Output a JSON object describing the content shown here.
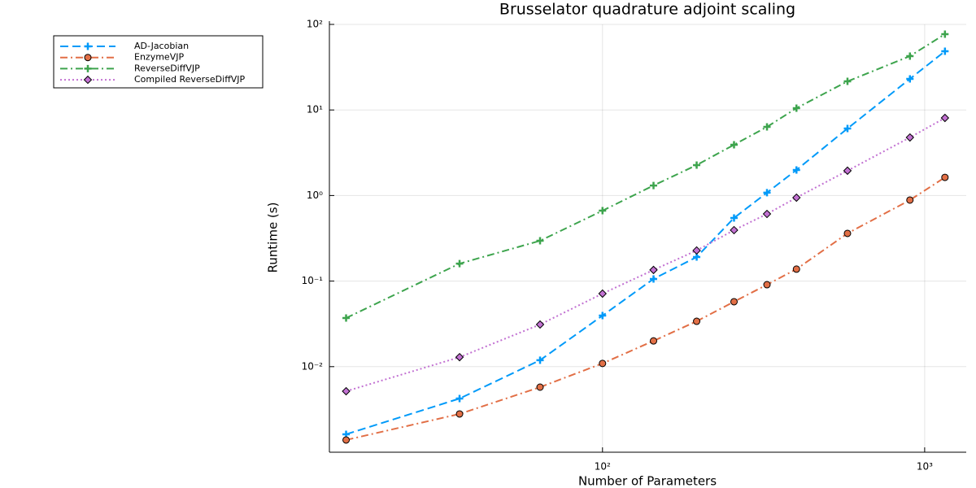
{
  "chart_data": {
    "type": "line",
    "title": "Brusselator quadrature adjoint scaling",
    "x_label": "Number of Parameters",
    "y_label": "Runtime (s)",
    "x": [
      16,
      36,
      64,
      100,
      144,
      196,
      256,
      324,
      400,
      576,
      900,
      1156
    ],
    "series": [
      {
        "name": "AD-Jacobian",
        "color": "#009af9",
        "linestyle": "dash",
        "marker": "cross",
        "values": [
          0.00162,
          0.00424,
          0.0119,
          0.0395,
          0.106,
          0.191,
          0.547,
          1.08,
          1.99,
          6.07,
          23.1,
          48.5
        ]
      },
      {
        "name": "EnzymeVJP",
        "color": "#e26f46",
        "linestyle": "dashdot",
        "marker": "circle",
        "values": [
          0.00139,
          0.0028,
          0.00576,
          0.0109,
          0.02,
          0.0339,
          0.0574,
          0.0908,
          0.138,
          0.361,
          0.885,
          1.63
        ]
      },
      {
        "name": "ReverseDiffVJP",
        "color": "#3da44d",
        "linestyle": "dashdot",
        "marker": "cross",
        "values": [
          0.037,
          0.16,
          0.296,
          0.665,
          1.31,
          2.27,
          3.92,
          6.34,
          10.5,
          21.6,
          42.6,
          76.9
        ]
      },
      {
        "name": "Compiled ReverseDiffVJP",
        "color": "#c271d2",
        "linestyle": "dot",
        "marker": "diamond",
        "values": [
          0.00516,
          0.0129,
          0.0311,
          0.0714,
          0.135,
          0.228,
          0.394,
          0.609,
          0.944,
          1.95,
          4.77,
          8.07
        ]
      }
    ],
    "log_x": true,
    "log_y": true,
    "xlim": [
      14.2,
      1346
    ],
    "ylim": [
      0.001,
      100
    ],
    "xticks": [
      {
        "value": 100,
        "label": "10²"
      },
      {
        "value": 1000,
        "label": "10³"
      }
    ],
    "yticks": [
      {
        "value": 0.01,
        "label": "10⁻²"
      },
      {
        "value": 0.1,
        "label": "10⁻¹"
      },
      {
        "value": 1,
        "label": "10⁰"
      },
      {
        "value": 10,
        "label": "10¹"
      },
      {
        "value": 100,
        "label": "10²"
      }
    ],
    "grid": true,
    "legend": "outer-top-left"
  }
}
